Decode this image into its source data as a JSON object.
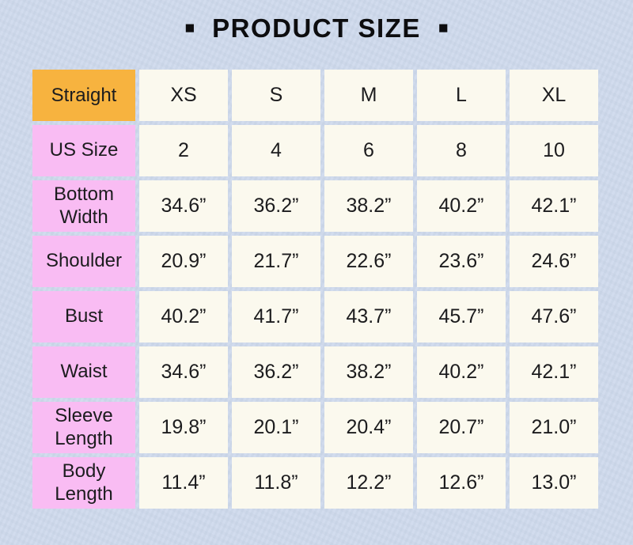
{
  "title": {
    "left_square": "■",
    "text": "PRODUCT SIZE",
    "right_square": "■"
  },
  "table": {
    "corner_label": "Straight",
    "size_headers": [
      "XS",
      "S",
      "M",
      "L",
      "XL"
    ],
    "rows": [
      {
        "label": "US Size",
        "values": [
          "2",
          "4",
          "6",
          "8",
          "10"
        ]
      },
      {
        "label": "Bottom Width",
        "values": [
          "34.6”",
          "36.2”",
          "38.2”",
          "40.2”",
          "42.1”"
        ]
      },
      {
        "label": "Shoulder",
        "values": [
          "20.9”",
          "21.7”",
          "22.6”",
          "23.6”",
          "24.6”"
        ]
      },
      {
        "label": "Bust",
        "values": [
          "40.2”",
          "41.7”",
          "43.7”",
          "45.7”",
          "47.6”"
        ]
      },
      {
        "label": "Waist",
        "values": [
          "34.6”",
          "36.2”",
          "38.2”",
          "40.2”",
          "42.1”"
        ]
      },
      {
        "label": "Sleeve Length",
        "values": [
          "19.8”",
          "20.1”",
          "20.4”",
          "20.7”",
          "21.0”"
        ]
      },
      {
        "label": "Body Length",
        "values": [
          "11.4”",
          "11.8”",
          "12.2”",
          "12.6”",
          "13.0”"
        ]
      }
    ]
  },
  "chart_data": {
    "type": "table",
    "title": "PRODUCT SIZE",
    "fit_name": "Straight",
    "columns": [
      "XS",
      "S",
      "M",
      "L",
      "XL"
    ],
    "rows": [
      {
        "measure": "US Size",
        "values": [
          2,
          4,
          6,
          8,
          10
        ]
      },
      {
        "measure": "Bottom Width",
        "unit": "inch",
        "values": [
          34.6,
          36.2,
          38.2,
          40.2,
          42.1
        ]
      },
      {
        "measure": "Shoulder",
        "unit": "inch",
        "values": [
          20.9,
          21.7,
          22.6,
          23.6,
          24.6
        ]
      },
      {
        "measure": "Bust",
        "unit": "inch",
        "values": [
          40.2,
          41.7,
          43.7,
          45.7,
          47.6
        ]
      },
      {
        "measure": "Waist",
        "unit": "inch",
        "values": [
          34.6,
          36.2,
          38.2,
          40.2,
          42.1
        ]
      },
      {
        "measure": "Sleeve Length",
        "unit": "inch",
        "values": [
          19.8,
          20.1,
          20.4,
          20.7,
          21.0
        ]
      },
      {
        "measure": "Body Length",
        "unit": "inch",
        "values": [
          11.4,
          11.8,
          12.2,
          12.6,
          13.0
        ]
      }
    ]
  },
  "colors": {
    "page_background": "#cdd9ec",
    "corner_cell": "#f7b33f",
    "row_label_cell": "#f9bcf3",
    "data_cell": "#fbf9ee",
    "text": "#1c1c1e"
  }
}
